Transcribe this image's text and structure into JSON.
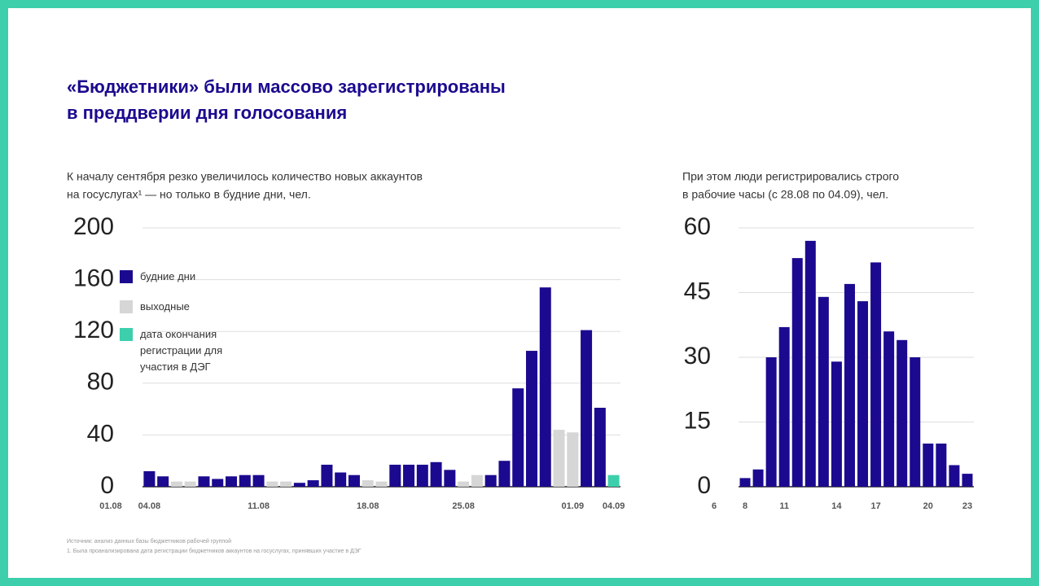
{
  "title_lines": [
    "«Бюджетники» были массово зарегистрированы",
    "в преддверии дня голосования"
  ],
  "chart_data": [
    {
      "type": "bar",
      "subtitle": [
        "К началу сентября резко увеличилось количество новых аккаунтов",
        "на госуслугах¹ — но только в будние дни, чел."
      ],
      "axis_start_label": "01.08",
      "categories": [
        "04.08",
        null,
        null,
        null,
        null,
        null,
        null,
        null,
        "11.08",
        null,
        null,
        null,
        null,
        null,
        null,
        null,
        "18.08",
        null,
        null,
        null,
        null,
        null,
        null,
        "25.08",
        null,
        null,
        null,
        null,
        null,
        null,
        null,
        "01.09",
        null,
        null,
        "04.09"
      ],
      "series": [
        {
          "name": "будние дни",
          "color": "#1b0a8f",
          "values": [
            12,
            8,
            null,
            null,
            8,
            6,
            8,
            9,
            9,
            null,
            null,
            3,
            5,
            17,
            11,
            9,
            null,
            null,
            17,
            17,
            17,
            19,
            13,
            null,
            null,
            9,
            20,
            76,
            105,
            154,
            null,
            null,
            121,
            61,
            null
          ]
        },
        {
          "name": "выходные",
          "color": "#d6d6d6",
          "values": [
            null,
            null,
            4,
            4,
            null,
            null,
            null,
            null,
            null,
            4,
            4,
            null,
            null,
            null,
            null,
            null,
            5,
            4,
            null,
            null,
            null,
            null,
            null,
            4,
            9,
            null,
            null,
            null,
            null,
            null,
            44,
            42,
            null,
            null,
            null
          ]
        },
        {
          "name": "дата окончания регистрации для участия в ДЭГ",
          "color": "#3dcfac",
          "values": [
            null,
            null,
            null,
            null,
            null,
            null,
            null,
            null,
            null,
            null,
            null,
            null,
            null,
            null,
            null,
            null,
            null,
            null,
            null,
            null,
            null,
            null,
            null,
            null,
            null,
            null,
            null,
            null,
            null,
            null,
            null,
            null,
            null,
            null,
            9
          ]
        }
      ],
      "ylim": [
        0,
        200
      ],
      "yticks": [
        0,
        40,
        80,
        120,
        160,
        200
      ],
      "grid": true
    },
    {
      "type": "bar",
      "subtitle": [
        "При этом люди регистрировались строго",
        "в рабочие часы (с 28.08 по 04.09), чел."
      ],
      "axis_start_label": "6",
      "categories": [
        "8",
        null,
        null,
        "11",
        null,
        null,
        null,
        "14",
        null,
        null,
        "17",
        null,
        null,
        null,
        "20",
        null,
        null,
        "23"
      ],
      "values": [
        2,
        4,
        30,
        37,
        53,
        57,
        44,
        29,
        47,
        43,
        52,
        36,
        34,
        30,
        10,
        10,
        5,
        3
      ],
      "color": "#1b0a8f",
      "ylim": [
        0,
        60
      ],
      "yticks": [
        0,
        15,
        30,
        45,
        60
      ],
      "grid": true
    }
  ],
  "footnotes": [
    "Источник: анализ данных базы бюджетников рабочей группой",
    "1. Была проанализирована дата регистрации бюджетников аккаунтов на госуслугах, принявших участие в ДЭГ"
  ]
}
